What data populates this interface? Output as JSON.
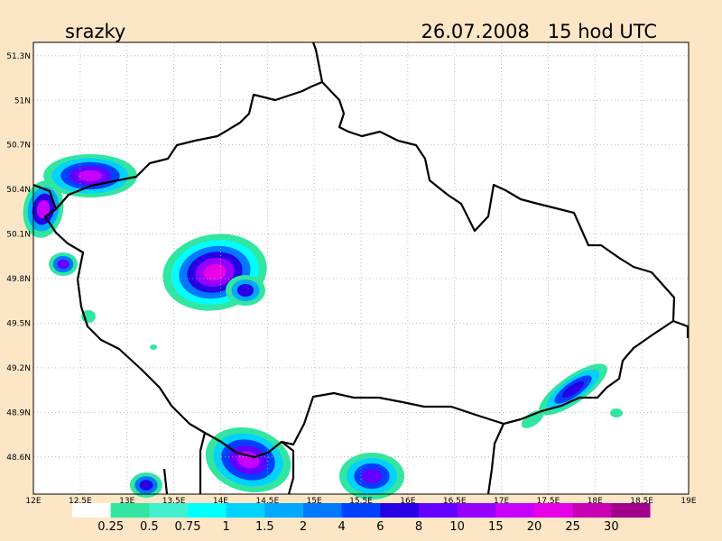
{
  "header": {
    "title": "srazky",
    "datetime": "26.07.2008   15 hod UTC"
  },
  "map": {
    "lonlim": [
      12,
      19
    ],
    "latlim": [
      48.35,
      51.39
    ],
    "lon_ticks": [
      {
        "value": 12,
        "label": "12E"
      },
      {
        "value": 12.5,
        "label": "12.5E"
      },
      {
        "value": 13,
        "label": "13E"
      },
      {
        "value": 13.5,
        "label": "13.5E"
      },
      {
        "value": 14,
        "label": "14E"
      },
      {
        "value": 14.5,
        "label": "14.5E"
      },
      {
        "value": 15,
        "label": "15E"
      },
      {
        "value": 15.5,
        "label": "15.5E"
      },
      {
        "value": 16,
        "label": "16E"
      },
      {
        "value": 16.5,
        "label": "16.5E"
      },
      {
        "value": 17,
        "label": "17E"
      },
      {
        "value": 17.5,
        "label": "17.5E"
      },
      {
        "value": 18,
        "label": "18E"
      },
      {
        "value": 18.5,
        "label": "18.5E"
      },
      {
        "value": 19,
        "label": "19E"
      }
    ],
    "lat_ticks": [
      {
        "value": 51.3,
        "label": "51.3N"
      },
      {
        "value": 51,
        "label": "51N"
      },
      {
        "value": 50.7,
        "label": "50.7N"
      },
      {
        "value": 50.4,
        "label": "50.4N"
      },
      {
        "value": 50.1,
        "label": "50.1N"
      },
      {
        "value": 49.8,
        "label": "49.8N"
      },
      {
        "value": 49.5,
        "label": "49.5N"
      },
      {
        "value": 49.2,
        "label": "49.2N"
      },
      {
        "value": 48.9,
        "label": "48.9N"
      },
      {
        "value": 48.6,
        "label": "48.6N"
      }
    ]
  },
  "legend": {
    "levels": [
      0.25,
      0.5,
      0.75,
      1,
      1.5,
      2,
      4,
      6,
      8,
      10,
      15,
      20,
      25,
      30
    ],
    "colors": [
      "#ffffff",
      "#30e6a0",
      "#40f0d0",
      "#00ffff",
      "#00d2ff",
      "#00a8ff",
      "#0078ff",
      "#0040ff",
      "#2800e6",
      "#6400ff",
      "#9600ff",
      "#c800ff",
      "#e600e6",
      "#c800b4",
      "#a0008c"
    ]
  }
}
